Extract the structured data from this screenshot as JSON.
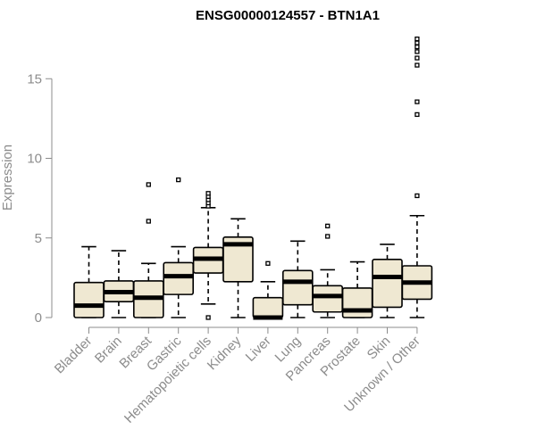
{
  "chart_data": {
    "type": "boxplot",
    "title": "ENSG00000124557 - BTN1A1",
    "xlabel": "",
    "ylabel": "Expression",
    "ylim": [
      0,
      17.7
    ],
    "yticks": [
      0,
      5,
      10,
      15
    ],
    "grid": false,
    "colors": {
      "box_fill": "#efe8d2",
      "axis": "#8c8c8c",
      "stroke": "#000000"
    },
    "categories": [
      "Bladder",
      "Brain",
      "Breast",
      "Gastric",
      "Hematopoietic cells",
      "Kidney",
      "Liver",
      "Lung",
      "Pancreas",
      "Prostate",
      "Skin",
      "Unknown / Other"
    ],
    "boxes": [
      {
        "min": 0.0,
        "q1": 0.0,
        "median": 0.75,
        "q3": 2.2,
        "max": 4.45,
        "outliers": []
      },
      {
        "min": 0.0,
        "q1": 1.0,
        "median": 1.6,
        "q3": 2.3,
        "max": 4.2,
        "outliers": []
      },
      {
        "min": 0.0,
        "q1": 0.0,
        "median": 1.25,
        "q3": 2.3,
        "max": 3.4,
        "outliers": [
          6.05,
          8.35
        ]
      },
      {
        "min": 0.0,
        "q1": 1.45,
        "median": 2.6,
        "q3": 3.45,
        "max": 4.45,
        "outliers": [
          8.65
        ]
      },
      {
        "min": 0.85,
        "q1": 2.8,
        "median": 3.7,
        "q3": 4.4,
        "max": 6.9,
        "outliers": [
          0.0,
          7.0,
          7.2,
          7.4,
          7.6,
          7.8
        ]
      },
      {
        "min": 0.0,
        "q1": 2.25,
        "median": 4.6,
        "q3": 5.05,
        "max": 6.2,
        "outliers": []
      },
      {
        "min": 0.0,
        "q1": 0.0,
        "median": 0.0,
        "q3": 1.25,
        "max": 2.25,
        "outliers": [
          3.4
        ]
      },
      {
        "min": 0.0,
        "q1": 0.8,
        "median": 2.25,
        "q3": 2.95,
        "max": 4.8,
        "outliers": []
      },
      {
        "min": 0.0,
        "q1": 0.35,
        "median": 1.35,
        "q3": 2.0,
        "max": 3.0,
        "outliers": [
          5.1,
          5.75
        ]
      },
      {
        "min": 0.0,
        "q1": 0.0,
        "median": 0.45,
        "q3": 1.85,
        "max": 3.5,
        "outliers": []
      },
      {
        "min": 0.0,
        "q1": 0.65,
        "median": 2.55,
        "q3": 3.65,
        "max": 4.6,
        "outliers": []
      },
      {
        "min": 0.0,
        "q1": 1.15,
        "median": 2.2,
        "q3": 3.25,
        "max": 6.4,
        "outliers": [
          7.65,
          12.75,
          13.55,
          15.85,
          16.3,
          16.7,
          17.0,
          17.25,
          17.5
        ]
      }
    ]
  }
}
